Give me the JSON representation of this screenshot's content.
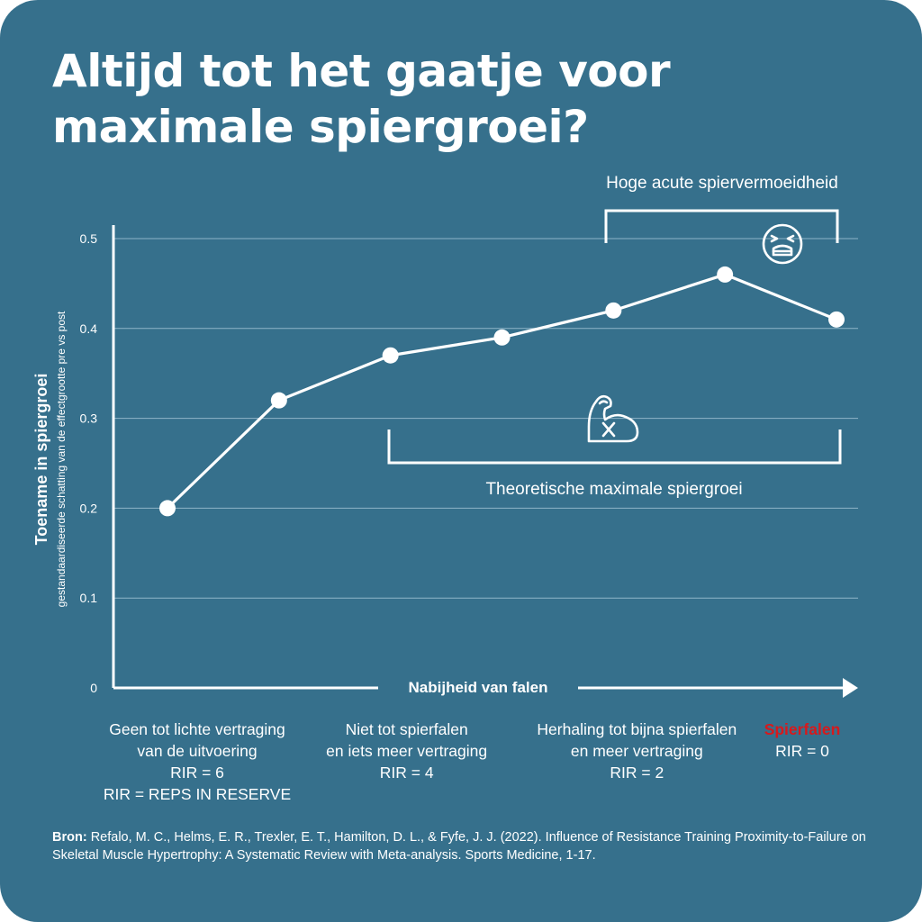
{
  "title_line1": "Altijd tot het gaatje voor",
  "title_line2": "maximale spiergroei?",
  "colors": {
    "background": "#36708c",
    "line": "#ffffff",
    "grid": "#8fb5c8",
    "failure_red": "#d7191c"
  },
  "chart_data": {
    "type": "line",
    "title": "Altijd tot het gaatje voor maximale spiergroei?",
    "ylabel": "Toename in spiergroei",
    "ylabel_sub": "gestandaardiseerde schatting van de effectgrootte pre vs post",
    "xlabel": "Nabijheid van falen",
    "ylim": [
      0,
      0.5
    ],
    "yticks": [
      "0",
      "0.1",
      "0.2",
      "0.3",
      "0.4",
      "0.5"
    ],
    "grid": true,
    "x": [
      6,
      5,
      4,
      3,
      2,
      1,
      0
    ],
    "series": [
      {
        "values": [
          0.2,
          0.32,
          0.37,
          0.39,
          0.42,
          0.46,
          0.41
        ]
      }
    ],
    "annotations": {
      "fatigue_label": "Hoge acute spiervermoeidheid",
      "fatigue_icon": "tired-face-icon",
      "growth_label": "Theoretische maximale spiergroei",
      "growth_icon": "flexed-bicep-icon"
    }
  },
  "categories": [
    {
      "lines": [
        "Geen tot lichte vertraging",
        "van de uitvoering",
        "RIR = 6",
        "RIR = REPS IN RESERVE"
      ]
    },
    {
      "lines": [
        "Niet tot spierfalen",
        "en iets meer vertraging",
        "RIR = 4"
      ]
    },
    {
      "lines": [
        "Herhaling tot bijna spierfalen",
        "en meer vertraging",
        "RIR = 2"
      ]
    },
    {
      "lines": [
        "Spierfalen",
        "RIR = 0"
      ]
    }
  ],
  "source": {
    "label": "Bron:",
    "text": "Refalo, M. C., Helms, E. R., Trexler, E. T., Hamilton, D. L., & Fyfe, J. J. (2022). Influence of Resistance Training Proximity-to-Failure on Skeletal Muscle Hypertrophy: A Systematic Review with Meta-analysis. Sports Medicine, 1-17."
  }
}
